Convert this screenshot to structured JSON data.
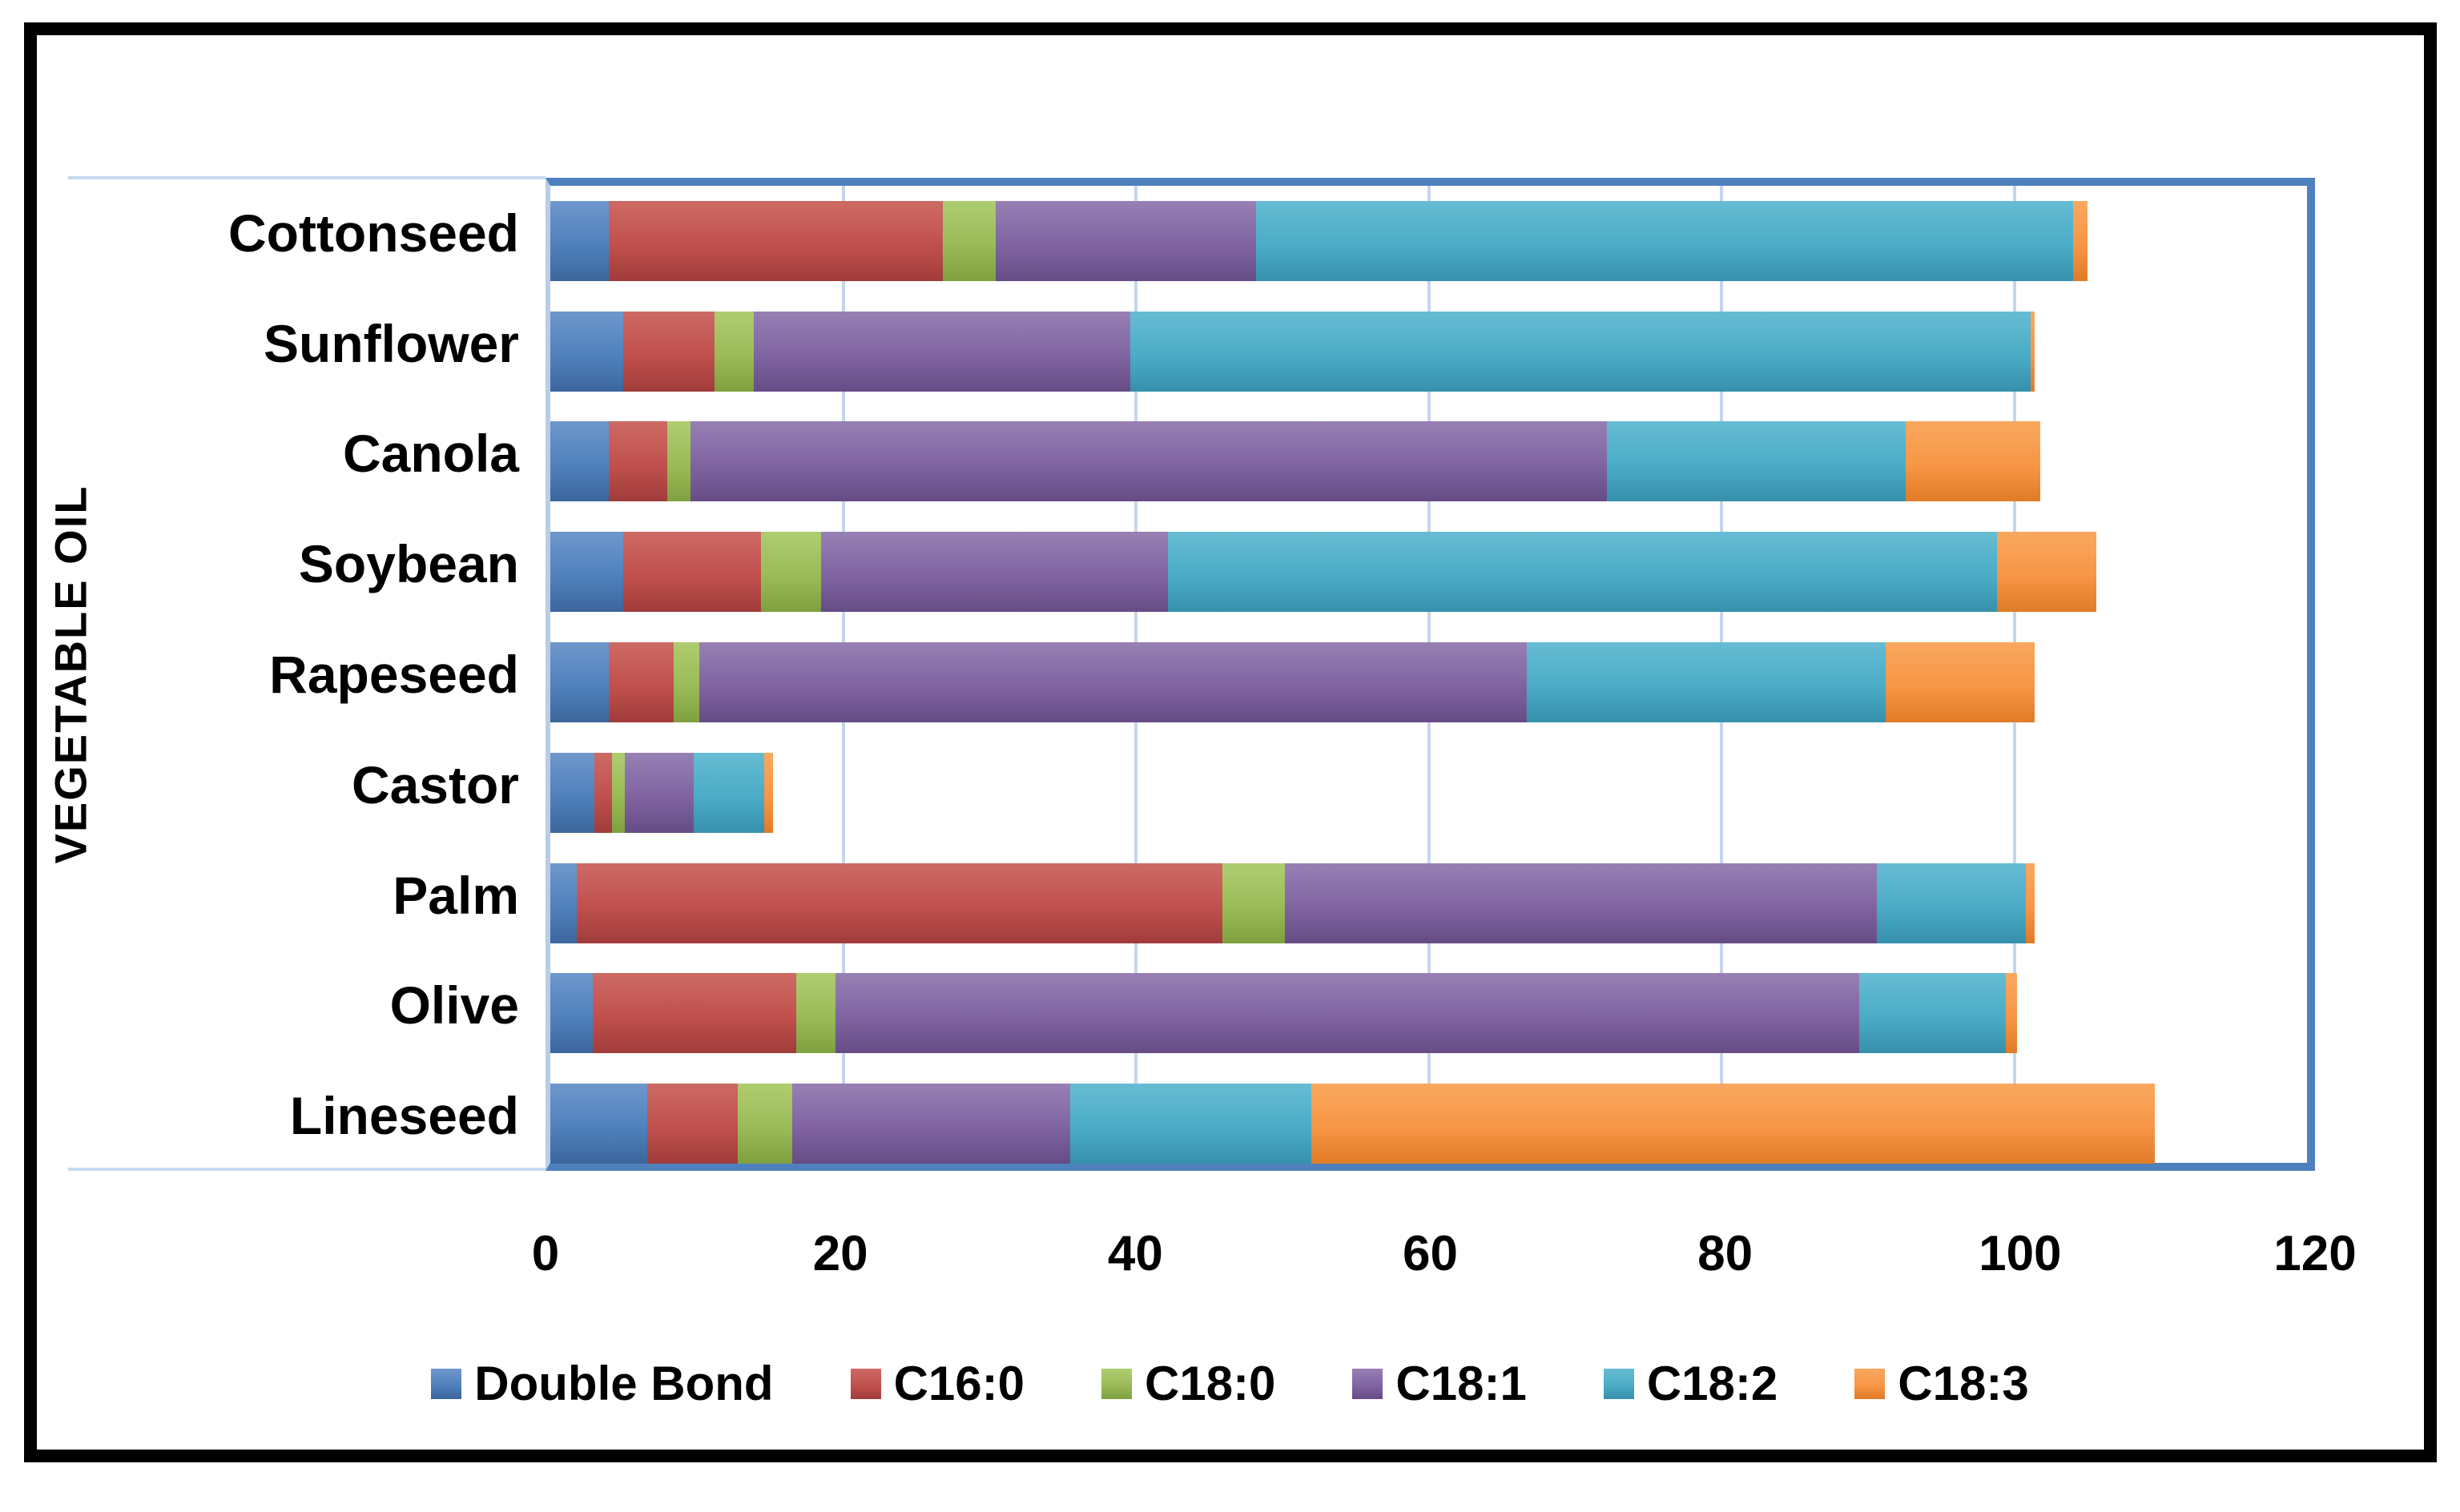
{
  "chart_data": {
    "type": "bar",
    "variant": "horizontal-stacked",
    "title": "",
    "xlabel": "",
    "ylabel": "VEGETABLE OIL",
    "xlim": [
      0,
      120
    ],
    "x_ticks": [
      0,
      20,
      40,
      60,
      80,
      100,
      120
    ],
    "grid": true,
    "legend_position": "bottom",
    "categories": [
      "Cottonseed",
      "Sunflower",
      "Canola",
      "Soybean",
      "Rapeseed",
      "Castor",
      "Palm",
      "Olive",
      "Lineseed"
    ],
    "series": [
      {
        "name": "Double Bond",
        "color": "#4F81BD",
        "color_top": "#6F97CC",
        "color_bottom": "#3C669C",
        "values": [
          4.0,
          5.0,
          4.0,
          5.0,
          4.0,
          3.0,
          1.8,
          2.9,
          6.6
        ]
      },
      {
        "name": "C16:0",
        "color": "#C0504D",
        "color_top": "#CD6A64",
        "color_bottom": "#A03C3A",
        "values": [
          22.8,
          6.2,
          4.0,
          9.4,
          4.4,
          1.2,
          44.1,
          13.9,
          6.2
        ]
      },
      {
        "name": "C18:0",
        "color": "#9BBB59",
        "color_top": "#AECD70",
        "color_bottom": "#7FA03F",
        "values": [
          3.6,
          2.7,
          1.6,
          4.1,
          1.8,
          0.9,
          4.3,
          2.7,
          3.7
        ]
      },
      {
        "name": "C18:1",
        "color": "#8064A2",
        "color_top": "#9780B4",
        "color_bottom": "#664C85",
        "values": [
          17.8,
          25.7,
          62.6,
          23.7,
          56.5,
          4.7,
          40.4,
          69.9,
          19.0
        ]
      },
      {
        "name": "C18:2",
        "color": "#4BACC6",
        "color_top": "#66BCD3",
        "color_bottom": "#3690AC",
        "values": [
          55.8,
          61.5,
          20.4,
          56.6,
          24.5,
          4.8,
          10.2,
          10.0,
          16.5
        ]
      },
      {
        "name": "C18:3",
        "color": "#F79646",
        "color_top": "#F9A85F",
        "color_bottom": "#E07B26",
        "values": [
          1.0,
          0.3,
          9.2,
          6.8,
          10.2,
          0.6,
          0.6,
          0.8,
          57.6
        ]
      }
    ]
  },
  "style_colors": {
    "plot_frame": "#4E80BD",
    "gridline": "#C5D5EB",
    "category_axis_line": "#B9CDE5",
    "outer_border": "#000000",
    "text": "#000000"
  }
}
